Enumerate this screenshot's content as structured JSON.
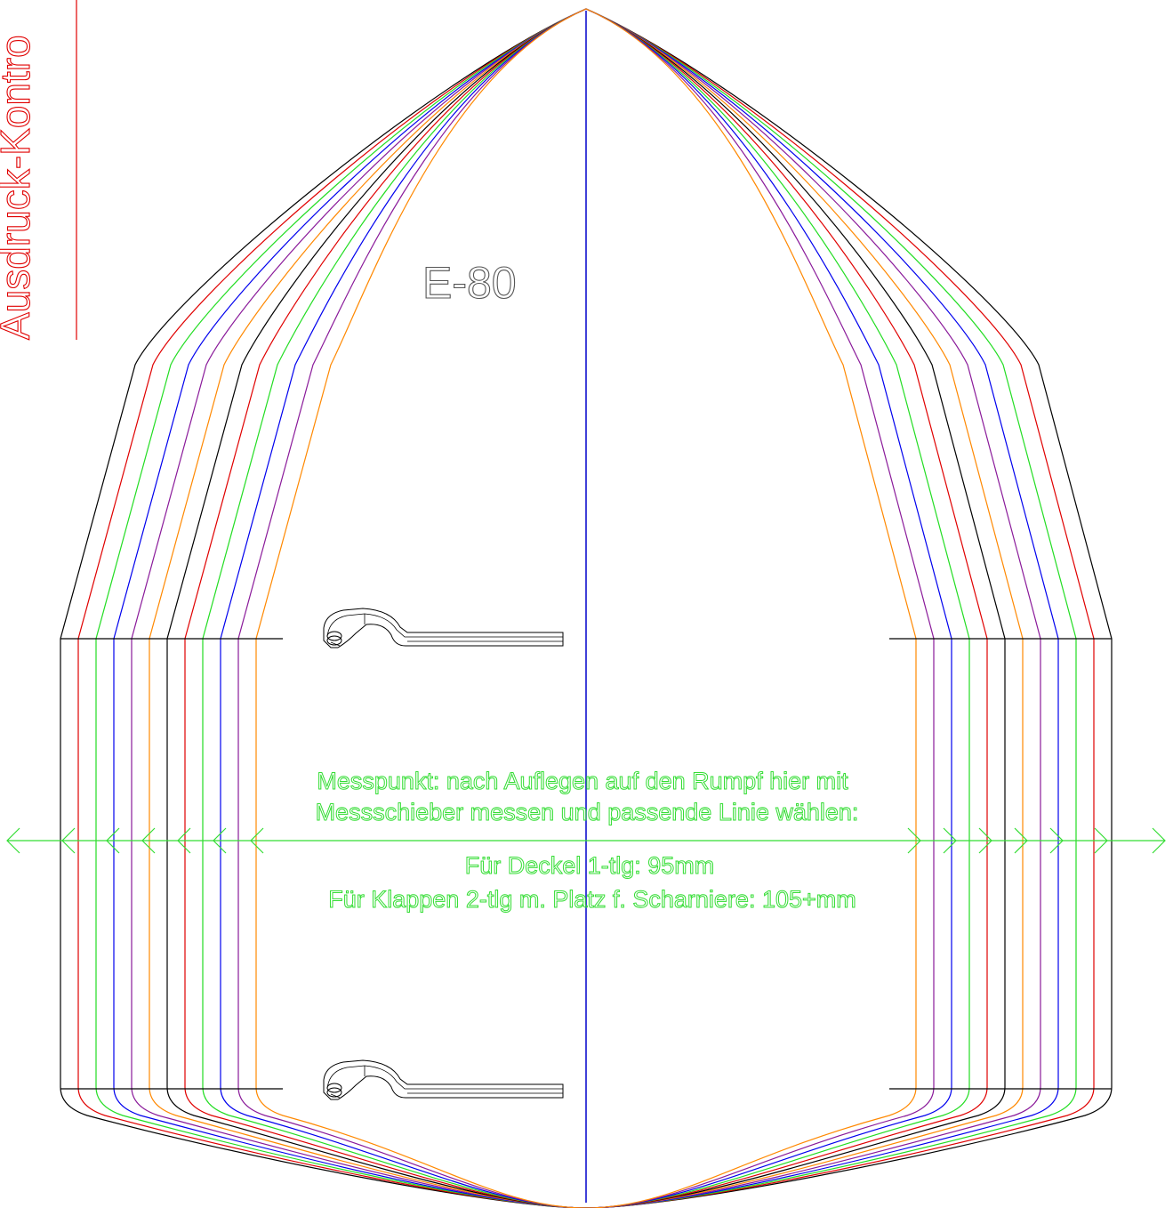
{
  "side_label": "Ausdruck-Kontro",
  "model_label": "E-80",
  "note": {
    "line1": "Messpunkt: nach Auflegen auf den Rumpf hier mit",
    "line2": "Messschieber messen und passende Linie wählen:",
    "line3": "Für Deckel 1-tlg: 95mm",
    "line4": "Für Klappen 2-tlg m. Platz f. Scharniere: 105+mm"
  },
  "colors": {
    "outline_cycle": [
      "#000000",
      "#e00000",
      "#22dd22",
      "#0000ee",
      "#8a1a9a",
      "#ff8800"
    ],
    "center_line": "#0000cc",
    "side_label": "#e00000",
    "note": "#33dd33",
    "model_label": "#555555",
    "hinge": "#000000"
  },
  "icons": [
    "hinge-icon",
    "arrow-left-icon",
    "arrow-right-icon"
  ]
}
